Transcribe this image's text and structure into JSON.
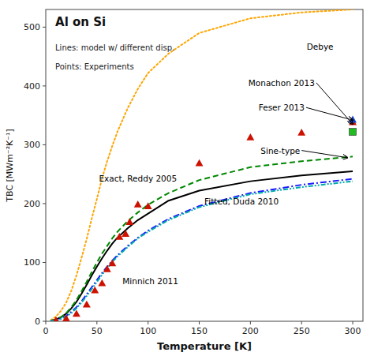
{
  "chart_data": {
    "type": "line",
    "title": "Al on Si",
    "subtitle": [
      "Lines: model w/ different disp.",
      "Points: Experiments"
    ],
    "x_label": "Temperature [K]",
    "y_label": "TBC [MWm⁻²K⁻¹]",
    "xlim": [
      0,
      310
    ],
    "ylim": [
      0,
      530
    ],
    "xticks": [
      0,
      50,
      100,
      150,
      200,
      250,
      300
    ],
    "yticks": [
      0,
      100,
      200,
      300,
      400,
      500
    ],
    "grid": false,
    "series": [
      {
        "type": "line",
        "color": "#ffa500",
        "line_style": "dotted",
        "x": [
          5,
          10,
          15,
          20,
          25,
          30,
          35,
          40,
          45,
          50,
          55,
          60,
          65,
          70,
          80,
          90,
          100,
          120,
          150,
          200,
          250,
          300
        ],
        "values": [
          2,
          8,
          18,
          32,
          52,
          78,
          108,
          140,
          175,
          208,
          243,
          272,
          298,
          322,
          362,
          395,
          422,
          455,
          490,
          515,
          525,
          530
        ]
      },
      {
        "type": "line",
        "color": "#000000",
        "line_style": "solid",
        "x": [
          5,
          10,
          15,
          20,
          25,
          30,
          35,
          40,
          45,
          50,
          55,
          60,
          65,
          70,
          75,
          80,
          90,
          100,
          120,
          150,
          200,
          250,
          300
        ],
        "values": [
          1,
          3,
          7,
          13,
          22,
          33,
          47,
          62,
          78,
          93,
          107,
          120,
          132,
          142,
          150,
          158,
          172,
          183,
          205,
          222,
          238,
          248,
          255
        ]
      },
      {
        "type": "line",
        "color": "#008800",
        "line_style": "dashed",
        "x": [
          5,
          10,
          15,
          20,
          25,
          30,
          35,
          40,
          45,
          50,
          55,
          60,
          65,
          70,
          75,
          80,
          90,
          100,
          120,
          150,
          200,
          250,
          300
        ],
        "values": [
          1,
          3,
          7,
          14,
          24,
          36,
          51,
          67,
          84,
          100,
          115,
          128,
          141,
          152,
          161,
          170,
          185,
          198,
          218,
          240,
          262,
          272,
          280
        ]
      },
      {
        "type": "line",
        "color": "#1a1aff",
        "line_style": "dashdot",
        "x": [
          5,
          10,
          15,
          20,
          25,
          30,
          35,
          40,
          45,
          50,
          55,
          60,
          65,
          70,
          75,
          80,
          90,
          100,
          120,
          150,
          200,
          250,
          300
        ],
        "values": [
          0.5,
          2,
          5,
          9,
          16,
          24,
          34,
          46,
          58,
          70,
          82,
          93,
          103,
          112,
          120,
          128,
          142,
          154,
          174,
          196,
          218,
          232,
          242
        ]
      },
      {
        "type": "line",
        "color": "#00aaaa",
        "line_style": "dashdotdot",
        "x": [
          5,
          10,
          15,
          20,
          25,
          30,
          35,
          40,
          45,
          50,
          55,
          60,
          65,
          70,
          75,
          80,
          90,
          100,
          120,
          150,
          200,
          250,
          300
        ],
        "values": [
          0.5,
          1.5,
          4,
          8,
          14,
          22,
          32,
          43,
          55,
          67,
          79,
          90,
          101,
          110,
          118,
          126,
          141,
          152,
          172,
          194,
          216,
          228,
          238
        ]
      },
      {
        "type": "scatter",
        "color": "#cc1100",
        "marker": "triangle",
        "x": [
          10,
          20,
          30,
          40,
          48,
          55,
          60,
          65,
          72,
          78,
          82,
          90,
          100,
          150,
          200,
          250,
          300
        ],
        "values": [
          1,
          4,
          12,
          28,
          52,
          64,
          88,
          98,
          143,
          148,
          168,
          198,
          195,
          268,
          312,
          320,
          338
        ]
      },
      {
        "type": "scatter",
        "color": "#1144cc",
        "marker": "triangle",
        "x": [
          300
        ],
        "values": [
          342
        ]
      },
      {
        "type": "scatter",
        "color": "#22bb22",
        "marker": "square",
        "x": [
          300
        ],
        "values": [
          322
        ]
      }
    ],
    "annotations": [
      {
        "text": "Debye",
        "x": 255,
        "y": 462
      },
      {
        "text": "Exact, Reddy 2005",
        "x": 52,
        "y": 238
      },
      {
        "text": "Sine-type",
        "x": 210,
        "y": 285,
        "arrow_x": 295,
        "arrow_y": 278
      },
      {
        "text": "Fitted, Duda 2010",
        "x": 155,
        "y": 198
      },
      {
        "text": "Minnich 2011",
        "x": 75,
        "y": 63
      },
      {
        "text": "Feser 2013",
        "x": 208,
        "y": 358,
        "arrow_x": 300,
        "arrow_y": 342
      },
      {
        "text": "Monachon 2013",
        "x": 198,
        "y": 400,
        "arrow_x": 300,
        "arrow_y": 335
      }
    ]
  }
}
